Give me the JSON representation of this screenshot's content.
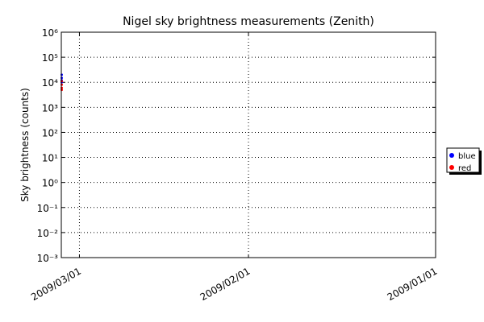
{
  "chart_data": {
    "type": "scatter",
    "title": "Nigel sky brightness measurements (Zenith)",
    "y_label": "Sky brightness (counts)",
    "log_y": true,
    "grid": true,
    "legend": "outside-right",
    "xlim": [
      "2009/03/04",
      "2009/01/01"
    ],
    "xticks": [
      "2009/03/01",
      "2009/02/01",
      "2009/01/01"
    ],
    "ylim": [
      0.001,
      1000000
    ],
    "yticks": [
      {
        "value": 0.001,
        "label": "10⁻³"
      },
      {
        "value": 0.01,
        "label": "10⁻²"
      },
      {
        "value": 0.1,
        "label": "10⁻¹"
      },
      {
        "value": 1,
        "label": "10⁰"
      },
      {
        "value": 10,
        "label": "10¹"
      },
      {
        "value": 100,
        "label": "10²"
      },
      {
        "value": 1000,
        "label": "10³"
      },
      {
        "value": 10000,
        "label": "10⁴"
      },
      {
        "value": 100000,
        "label": "10⁵"
      },
      {
        "value": 1000000,
        "label": "10⁶"
      }
    ],
    "series": [
      {
        "name": "blue",
        "color": "#0000ff",
        "x": [
          "2009/03/04",
          "2009/03/04",
          "2009/03/04",
          "2009/03/04"
        ],
        "values": [
          20000,
          15000,
          12000,
          10000
        ]
      },
      {
        "name": "red",
        "color": "#ff0000",
        "x": [
          "2009/03/04",
          "2009/03/04",
          "2009/03/04",
          "2009/03/04"
        ],
        "values": [
          11000,
          8000,
          6000,
          5000
        ]
      }
    ]
  }
}
